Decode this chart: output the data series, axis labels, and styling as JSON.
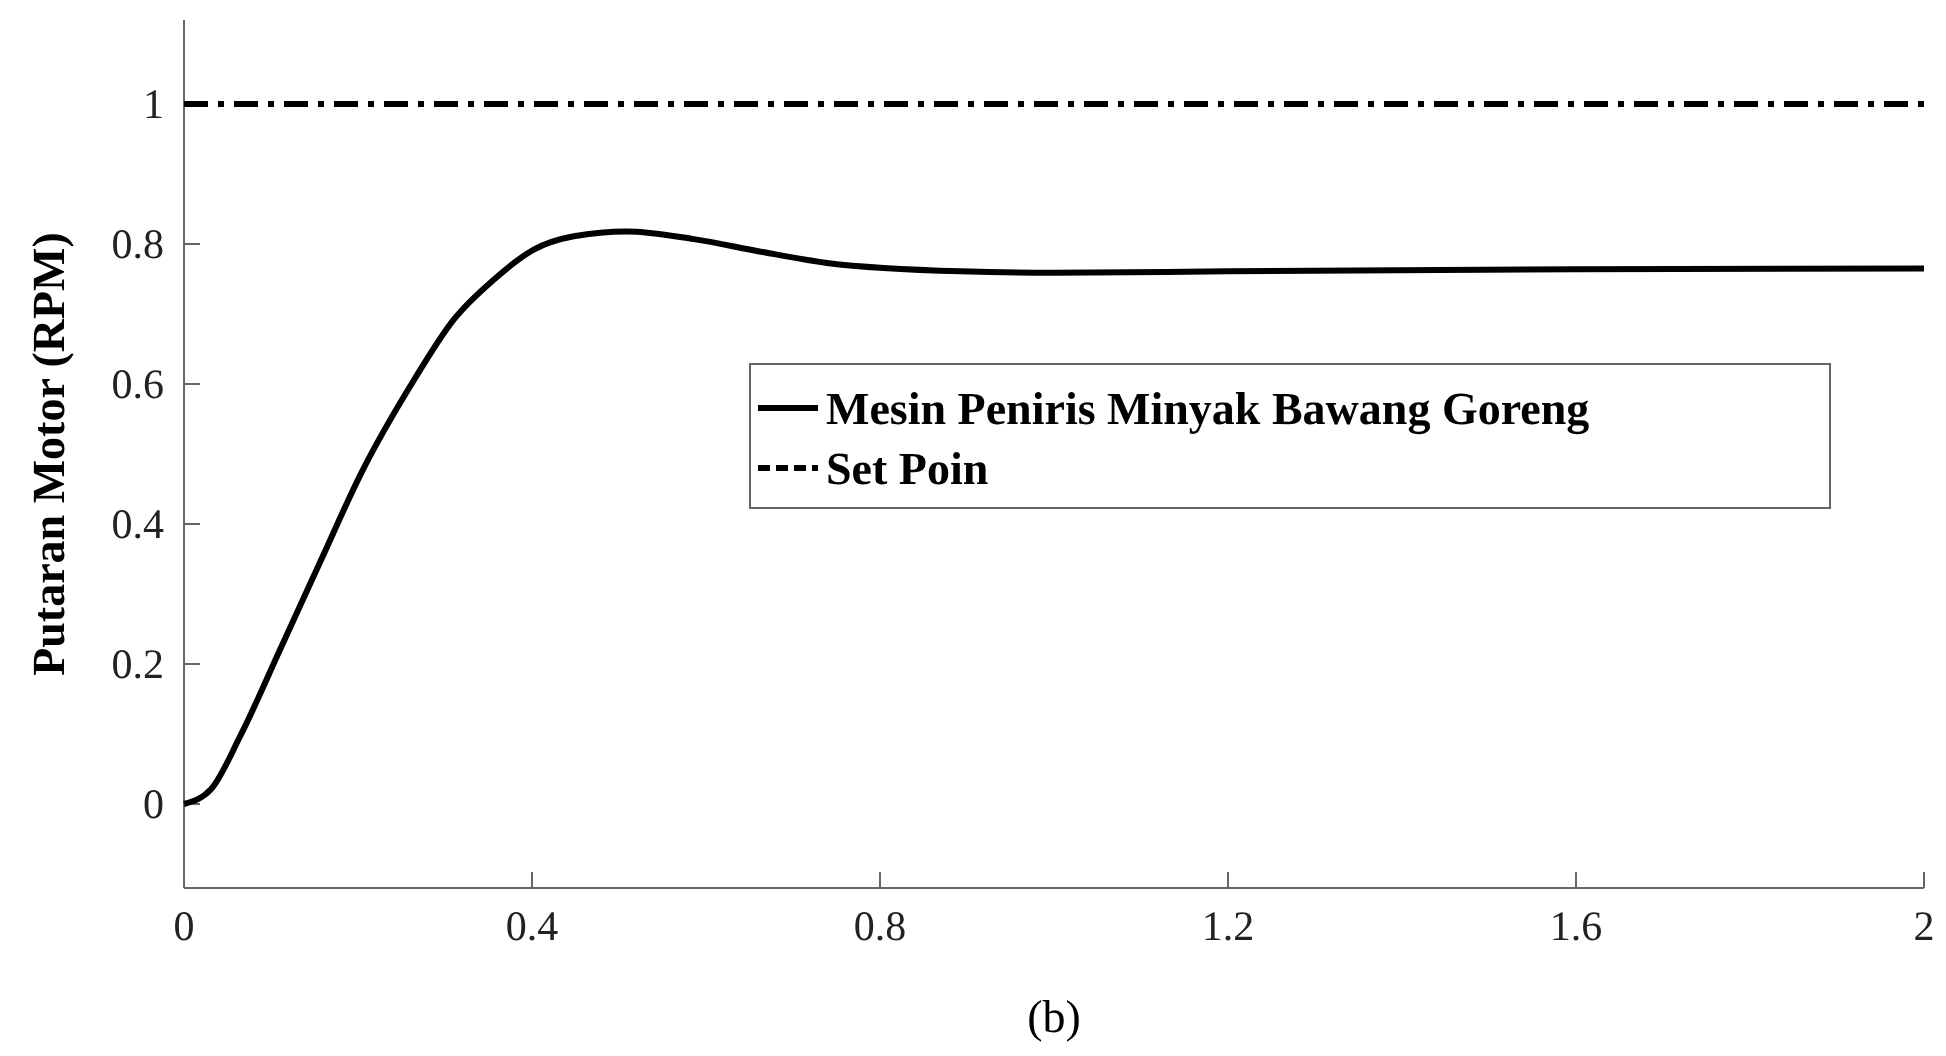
{
  "chart_data": {
    "type": "line",
    "ylabel": "Putaran Motor (RPM)",
    "annotations": [
      "(b)"
    ],
    "xlim": [
      0,
      2
    ],
    "ylim": [
      -0.12,
      1.12
    ],
    "xticks": [
      0,
      0.4,
      0.8,
      1.2,
      1.6,
      2
    ],
    "yticks": [
      0,
      0.2,
      0.4,
      0.6,
      0.8,
      1
    ],
    "legend": "right",
    "grid": false,
    "series": [
      {
        "name": "Mesin Peniris Minyak Bawang Goreng",
        "color": "#000000",
        "line_style": "solid",
        "x": [
          0,
          0.031,
          0.065,
          0.111,
          0.157,
          0.203,
          0.264,
          0.31,
          0.356,
          0.402,
          0.448,
          0.509,
          0.586,
          0.663,
          0.739,
          0.893,
          1.0,
          1.2,
          1.6,
          2.0
        ],
        "values": [
          0,
          0.021,
          0.098,
          0.222,
          0.347,
          0.471,
          0.605,
          0.692,
          0.749,
          0.792,
          0.811,
          0.818,
          0.807,
          0.789,
          0.773,
          0.761,
          0.759,
          0.761,
          0.764,
          0.765
        ]
      },
      {
        "name": "Set Poin",
        "color": "#000000",
        "line_style": "dashdot",
        "x": [
          0,
          2
        ],
        "values": [
          1,
          1
        ]
      }
    ]
  }
}
